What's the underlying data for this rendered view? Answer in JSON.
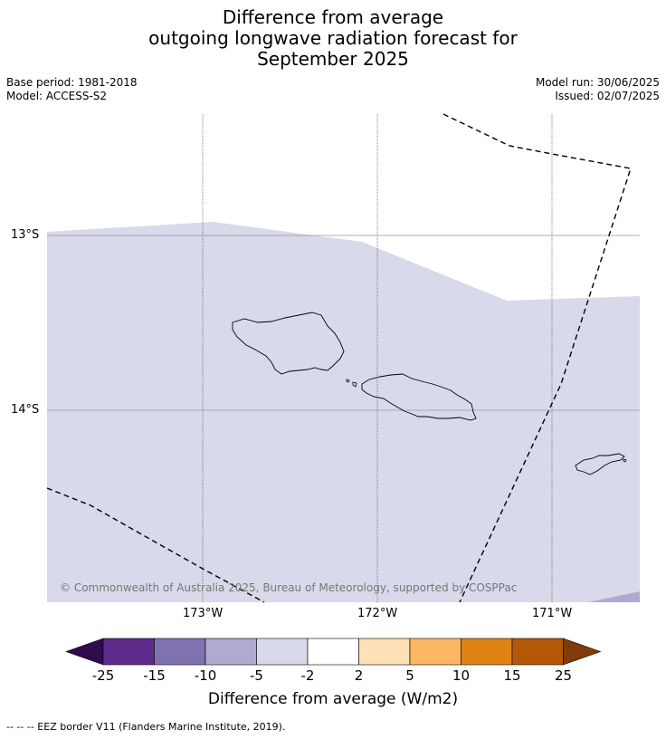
{
  "title": {
    "line1": "Difference from average",
    "line2": "outgoing longwave radiation forecast for",
    "line3": "September 2025"
  },
  "meta": {
    "base_period": "Base period: 1981-2018",
    "model": "Model: ACCESS-S2",
    "model_run": "Model run: 30/06/2025",
    "issued": "Issued: 02/07/2025"
  },
  "map": {
    "lat_ticks": [
      "13°S",
      "14°S"
    ],
    "lon_ticks": [
      "173°W",
      "172°W",
      "171°W"
    ],
    "anomaly_fill_color": "#d8d9ea",
    "corner_fill_color": "#b1a9d1",
    "eez_line_style": "dashed",
    "copyright": "© Commonwealth of Australia 2025, Bureau of Meteorology, supported by COSPPac"
  },
  "colorbar": {
    "tick_labels": [
      "-25",
      "-15",
      "-10",
      "-5",
      "-2",
      "2",
      "5",
      "10",
      "15",
      "25"
    ],
    "colors": [
      "#5e2a8c",
      "#8072b0",
      "#b1a9d1",
      "#d8d9ea",
      "#ffffff",
      "#fde0b6",
      "#fbb762",
      "#e08214",
      "#b35806"
    ],
    "under_color": "#2e0c4f",
    "over_color": "#7f3b08",
    "label": "Difference from average (W/m2)"
  },
  "footnote": "-- -- -- EEZ border V11 (Flanders Marine Institute, 2019)."
}
